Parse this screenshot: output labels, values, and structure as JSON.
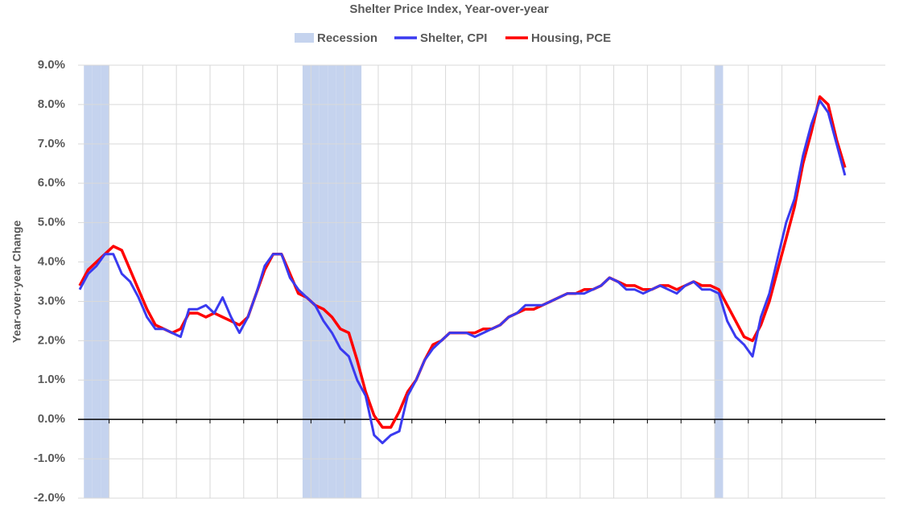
{
  "chart_data": {
    "type": "line",
    "title": "Shelter Price Index, Year-over-year",
    "y_label": "Year-over-year Change",
    "categories": [
      null,
      null,
      null,
      null,
      null,
      null,
      null,
      null,
      null,
      null,
      null,
      null,
      null,
      null,
      null,
      null,
      null,
      null,
      null,
      null,
      null,
      null,
      null,
      null,
      null,
      null,
      null,
      null,
      null,
      null,
      null,
      null,
      null,
      null,
      null,
      null,
      null,
      null,
      null,
      null,
      null,
      null,
      null,
      null,
      null,
      null,
      null,
      null,
      null,
      null,
      null,
      null,
      null,
      null,
      null,
      null,
      null,
      null,
      null,
      null,
      null,
      null,
      null,
      null,
      null,
      null,
      null,
      null,
      null,
      null,
      null,
      null,
      null,
      null,
      null,
      null,
      null,
      null,
      null,
      null,
      null,
      null,
      null,
      null,
      null,
      null,
      null,
      null,
      null,
      null,
      null,
      null
    ],
    "recession": {
      "name": "Recession",
      "color": "#c5d3ee",
      "values": [
        false,
        true,
        true,
        true,
        false,
        false,
        false,
        false,
        false,
        false,
        false,
        false,
        false,
        false,
        false,
        false,
        false,
        false,
        false,
        false,
        false,
        false,
        false,
        false,
        false,
        false,
        false,
        true,
        true,
        true,
        true,
        true,
        true,
        true,
        false,
        false,
        false,
        false,
        false,
        false,
        false,
        false,
        false,
        false,
        false,
        false,
        false,
        false,
        false,
        false,
        false,
        false,
        false,
        false,
        false,
        false,
        false,
        false,
        false,
        false,
        false,
        false,
        false,
        false,
        false,
        false,
        false,
        false,
        false,
        false,
        false,
        false,
        false,
        false,
        false,
        false,
        true,
        false,
        false,
        false,
        false,
        false,
        false,
        false,
        false,
        false,
        false,
        false,
        false,
        false,
        false,
        false
      ]
    },
    "series": [
      {
        "name": "Shelter, CPI",
        "color": "#3a3af0",
        "values": [
          3.3,
          3.7,
          3.9,
          4.2,
          4.2,
          3.7,
          3.5,
          3.1,
          2.6,
          2.3,
          2.3,
          2.2,
          2.1,
          2.8,
          2.8,
          2.9,
          2.7,
          3.1,
          2.6,
          2.2,
          2.6,
          3.2,
          3.9,
          4.2,
          4.2,
          3.6,
          3.3,
          3.1,
          2.9,
          2.5,
          2.2,
          1.8,
          1.6,
          1.0,
          0.6,
          -0.4,
          -0.6,
          -0.4,
          -0.3,
          0.6,
          1.0,
          1.5,
          1.8,
          2.0,
          2.2,
          2.2,
          2.2,
          2.1,
          2.2,
          2.3,
          2.4,
          2.6,
          2.7,
          2.9,
          2.9,
          2.9,
          3.0,
          3.1,
          3.2,
          3.2,
          3.2,
          3.3,
          3.4,
          3.6,
          3.5,
          3.3,
          3.3,
          3.2,
          3.3,
          3.4,
          3.3,
          3.2,
          3.4,
          3.5,
          3.3,
          3.3,
          3.2,
          2.5,
          2.1,
          1.9,
          1.6,
          2.6,
          3.2,
          4.1,
          5.0,
          5.6,
          6.7,
          7.5,
          8.1,
          7.8,
          7.0,
          6.2
        ]
      },
      {
        "name": "Housing, PCE",
        "color": "#ff0000",
        "values": [
          3.4,
          3.8,
          4.0,
          4.2,
          4.4,
          4.3,
          3.8,
          3.3,
          2.8,
          2.4,
          2.3,
          2.2,
          2.3,
          2.7,
          2.7,
          2.6,
          2.7,
          2.6,
          2.5,
          2.4,
          2.6,
          3.2,
          3.8,
          4.2,
          4.2,
          3.7,
          3.2,
          3.1,
          2.9,
          2.8,
          2.6,
          2.3,
          2.2,
          1.5,
          0.7,
          0.1,
          -0.2,
          -0.2,
          0.2,
          0.7,
          1.0,
          1.5,
          1.9,
          2.0,
          2.2,
          2.2,
          2.2,
          2.2,
          2.3,
          2.3,
          2.4,
          2.6,
          2.7,
          2.8,
          2.8,
          2.9,
          3.0,
          3.1,
          3.2,
          3.2,
          3.3,
          3.3,
          3.4,
          3.6,
          3.5,
          3.4,
          3.4,
          3.3,
          3.3,
          3.4,
          3.4,
          3.3,
          3.4,
          3.5,
          3.4,
          3.4,
          3.3,
          2.9,
          2.5,
          2.1,
          2.0,
          2.4,
          3.0,
          3.8,
          4.6,
          5.4,
          6.5,
          7.3,
          8.2,
          8.0,
          7.1,
          6.4
        ]
      }
    ],
    "ylim": [
      -2,
      9
    ],
    "yticks": [
      {
        "value": -2,
        "label": "-2.0%"
      },
      {
        "value": -1,
        "label": "-1.0%"
      },
      {
        "value": 0,
        "label": "0.0%"
      },
      {
        "value": 1,
        "label": "1.0%"
      },
      {
        "value": 2,
        "label": "2.0%"
      },
      {
        "value": 3,
        "label": "3.0%"
      },
      {
        "value": 4,
        "label": "4.0%"
      },
      {
        "value": 5,
        "label": "5.0%"
      },
      {
        "value": 6,
        "label": "6.0%"
      },
      {
        "value": 7,
        "label": "7.0%"
      },
      {
        "value": 8,
        "label": "8.0%"
      },
      {
        "value": 9,
        "label": "9.0%"
      }
    ],
    "grid": true
  }
}
